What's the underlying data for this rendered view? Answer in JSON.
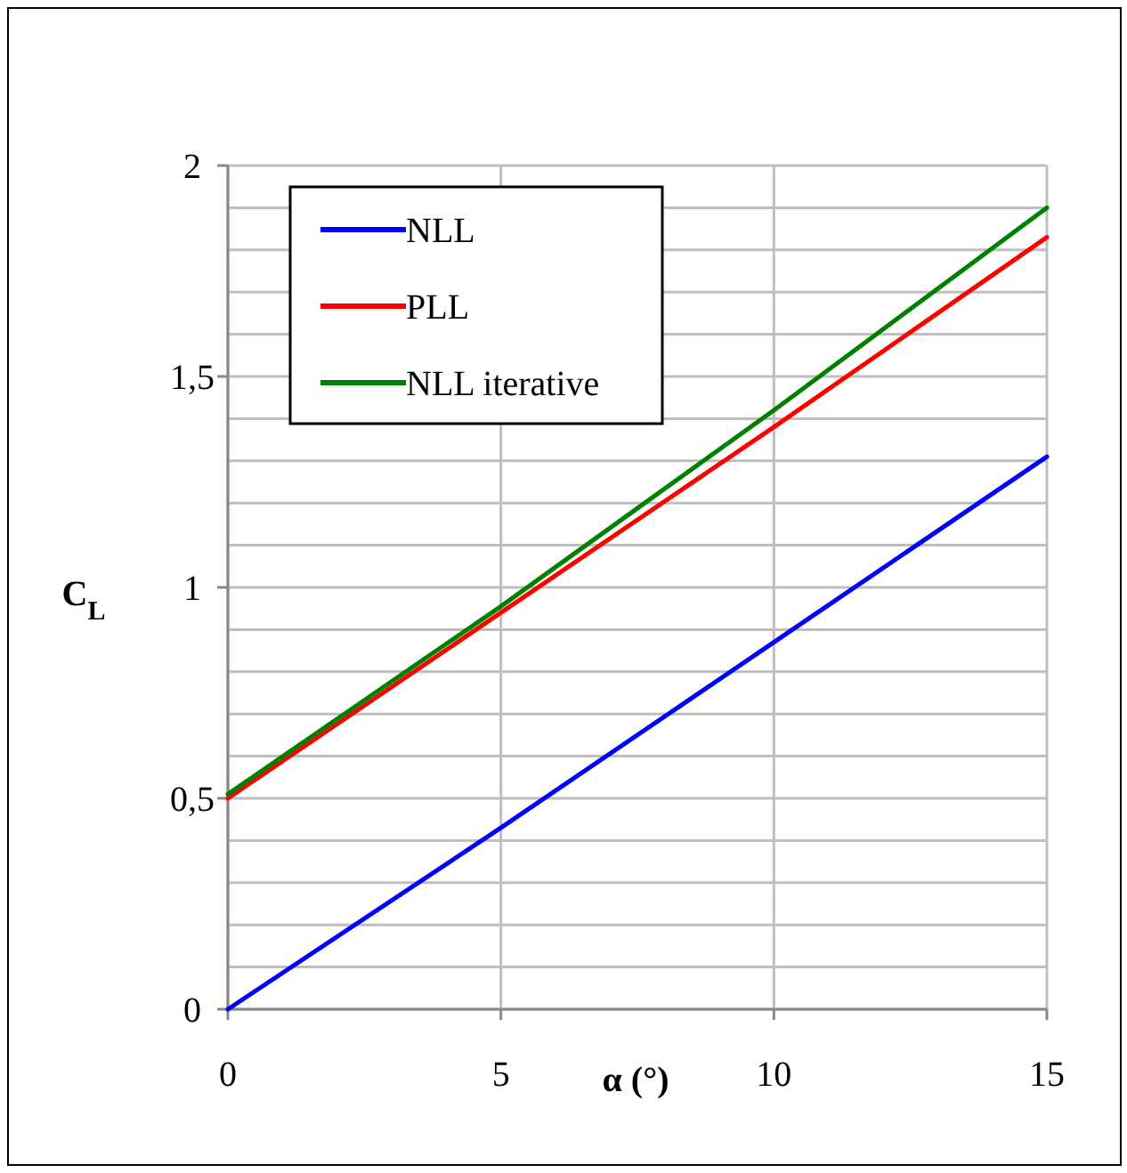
{
  "chart_data": {
    "type": "line",
    "xlabel": "α (°)",
    "ylabel": "C$_{L}$",
    "x": [
      0,
      5,
      10,
      15
    ],
    "series": [
      {
        "name": "NLL",
        "color": "#0000ff",
        "values": [
          0,
          0.43,
          0.87,
          1.31
        ]
      },
      {
        "name": "PLL",
        "color": "#ff0000",
        "values": [
          0.5,
          0.94,
          1.38,
          1.83
        ]
      },
      {
        "name": "NLL iterative",
        "color": "#008000",
        "values": [
          0.51,
          0.955,
          1.42,
          1.9
        ]
      }
    ],
    "xlim": [
      0,
      15
    ],
    "xticks": [
      0,
      5,
      10,
      15
    ],
    "ylim": [
      0,
      2
    ],
    "yticks": [
      0,
      {
        "value": 0.1,
        "label": null
      },
      {
        "value": 0.2,
        "label": null
      },
      {
        "value": 0.3,
        "label": null
      },
      {
        "value": 0.4,
        "label": null
      },
      {
        "value": 0.5,
        "label": "0,5"
      },
      {
        "value": 0.6,
        "label": null
      },
      {
        "value": 0.7,
        "label": null
      },
      {
        "value": 0.8,
        "label": null
      },
      {
        "value": 0.9,
        "label": null
      },
      1,
      {
        "value": 1.1,
        "label": null
      },
      {
        "value": 1.2,
        "label": null
      },
      {
        "value": 1.3,
        "label": null
      },
      {
        "value": 1.4,
        "label": null
      },
      {
        "value": 1.5,
        "label": "1,5"
      },
      {
        "value": 1.6,
        "label": null
      },
      {
        "value": 1.7,
        "label": null
      },
      {
        "value": 1.8,
        "label": null
      },
      {
        "value": 1.9,
        "label": null
      },
      2
    ],
    "grid": true,
    "legend": "top left",
    "marker": "none",
    "line_style": "solid"
  }
}
